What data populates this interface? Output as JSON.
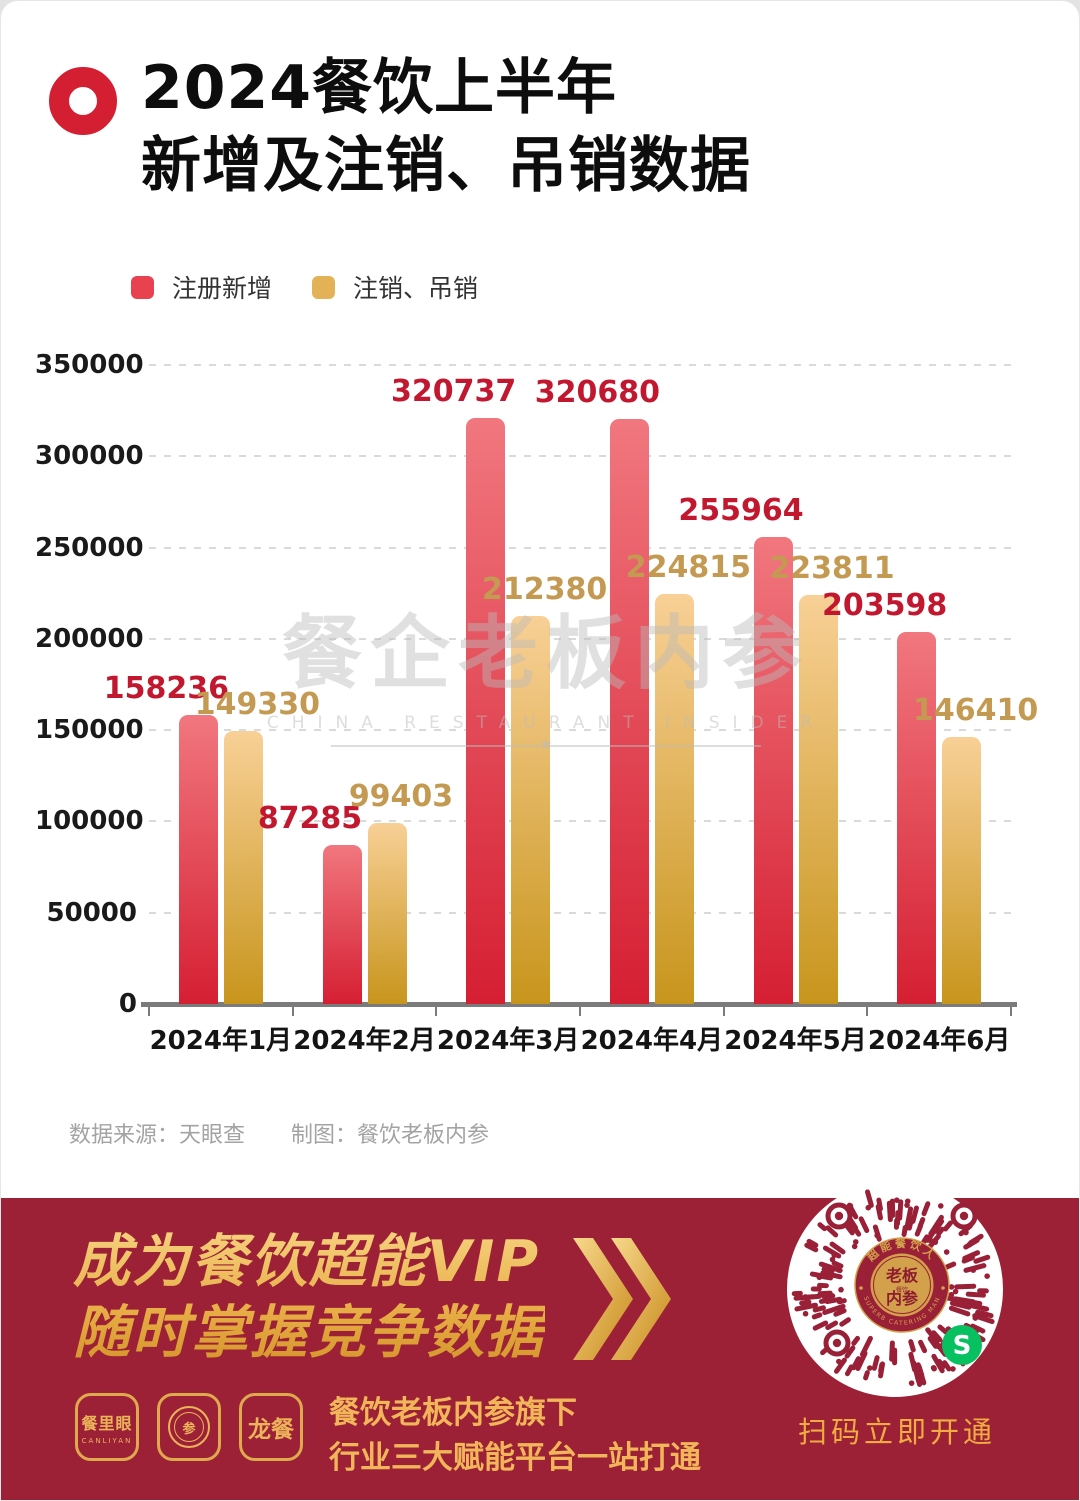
{
  "header": {
    "title_line1": "2024餐饮上半年",
    "title_line2": "新增及注销、吊销数据"
  },
  "legend": [
    {
      "label": "注册新增",
      "color": "#E8414F"
    },
    {
      "label": "注销、吊销",
      "color": "#E3B257"
    }
  ],
  "chart_data": {
    "type": "bar",
    "title": "2024餐饮上半年新增及注销、吊销数据",
    "categories": [
      "2024年1月",
      "2024年2月",
      "2024年3月",
      "2024年4月",
      "2024年5月",
      "2024年6月"
    ],
    "series": [
      {
        "name": "注册新增",
        "values": [
          158236,
          87285,
          320737,
          320680,
          255964,
          203598
        ],
        "color_top": "#F1777E",
        "color_bottom": "#D51F32",
        "label_color": "#C2182F"
      },
      {
        "name": "注销、吊销",
        "values": [
          149330,
          99403,
          212380,
          224815,
          223811,
          146410
        ],
        "color_top": "#F8D096",
        "color_bottom": "#C8951C",
        "label_color": "#C49A52"
      }
    ],
    "ylim": [
      0,
      350000
    ],
    "ytick_step": 50000,
    "yticks": [
      0,
      50000,
      100000,
      150000,
      200000,
      250000,
      300000,
      350000
    ],
    "grid": "horizontal-dashed",
    "legend_position": "top-left"
  },
  "watermark": {
    "cn": "餐企老板内参",
    "en": "CHINA RESTAURANT INSIDER",
    "star": "★"
  },
  "source": {
    "data_source": "数据来源：天眼查",
    "credit": "制图：餐饮老板内参"
  },
  "banner": {
    "slogan_line1": "成为餐饮超能VIP",
    "slogan_line2": "随时掌握竞争数据",
    "apps": [
      {
        "name": "餐里眼",
        "sub": "CANLIYAN"
      },
      {
        "name": "内参老板圆形印章",
        "center_char": "参"
      },
      {
        "name": "龙餐"
      }
    ],
    "subtitle_line1": "餐饮老板内参旗下",
    "subtitle_line2": "行业三大赋能平台一站打通",
    "qr": {
      "caption": "扫码立即开通",
      "seal_top": "超能餐饮人",
      "seal_main1": "老板",
      "seal_main2": "内参",
      "seal_small": "餐饮",
      "seal_bottom": "SUPERB CATERING MAN",
      "wechat_glyph": "S"
    },
    "colors": {
      "banner_bg": "#9D2136",
      "gold": "#EBB35A",
      "qr_dot": "#9A2037",
      "wechat_green": "#07C160"
    }
  }
}
